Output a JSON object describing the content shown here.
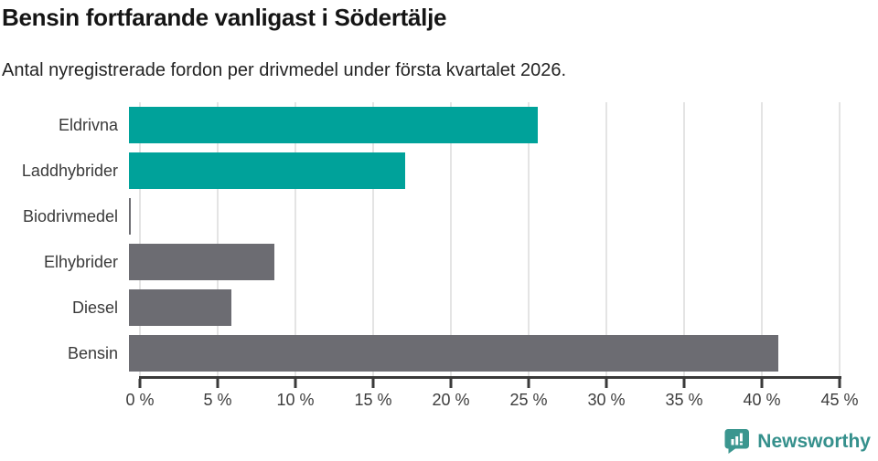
{
  "chart": {
    "title": "Bensin fortfarande vanligast i Södertälje",
    "subtitle": "Antal nyregistrerade fordon per drivmedel under första kvartalet 2026."
  },
  "chart_data": {
    "type": "bar",
    "orientation": "horizontal",
    "title": "Bensin fortfarande vanligast i Södertälje",
    "subtitle": "Antal nyregistrerade fordon per drivmedel under första kvartalet 2026.",
    "categories": [
      "Eldrivna",
      "Laddhybrider",
      "Biodrivmedel",
      "Elhybrider",
      "Diesel",
      "Bensin"
    ],
    "values": [
      25.9,
      17.5,
      0.1,
      9.2,
      6.5,
      41.1
    ],
    "unit": "%",
    "bar_colors": [
      "#00a29a",
      "#00a29a",
      "#6c6c72",
      "#6c6c72",
      "#6c6c72",
      "#6c6c72"
    ],
    "xlim": [
      0,
      45
    ],
    "x_ticks": [
      0,
      5,
      10,
      15,
      20,
      25,
      30,
      35,
      40,
      45
    ],
    "x_tick_labels": [
      "0 %",
      "5 %",
      "10 %",
      "15 %",
      "20 %",
      "25 %",
      "30 %",
      "35 %",
      "40 %",
      "45 %"
    ],
    "xlabel": "",
    "ylabel": "",
    "grid": "vertical-only",
    "legend": "none"
  },
  "colors": {
    "accent_teal": "#00a29a",
    "neutral_gray": "#6c6c72",
    "gridline": "#e4e4e4",
    "axis": "#3a3a3a",
    "brand_teal": "#3b968f"
  },
  "branding": {
    "name": "Newsworthy",
    "icon": "newsworthy-speech-bubble-bar-chart-icon"
  }
}
